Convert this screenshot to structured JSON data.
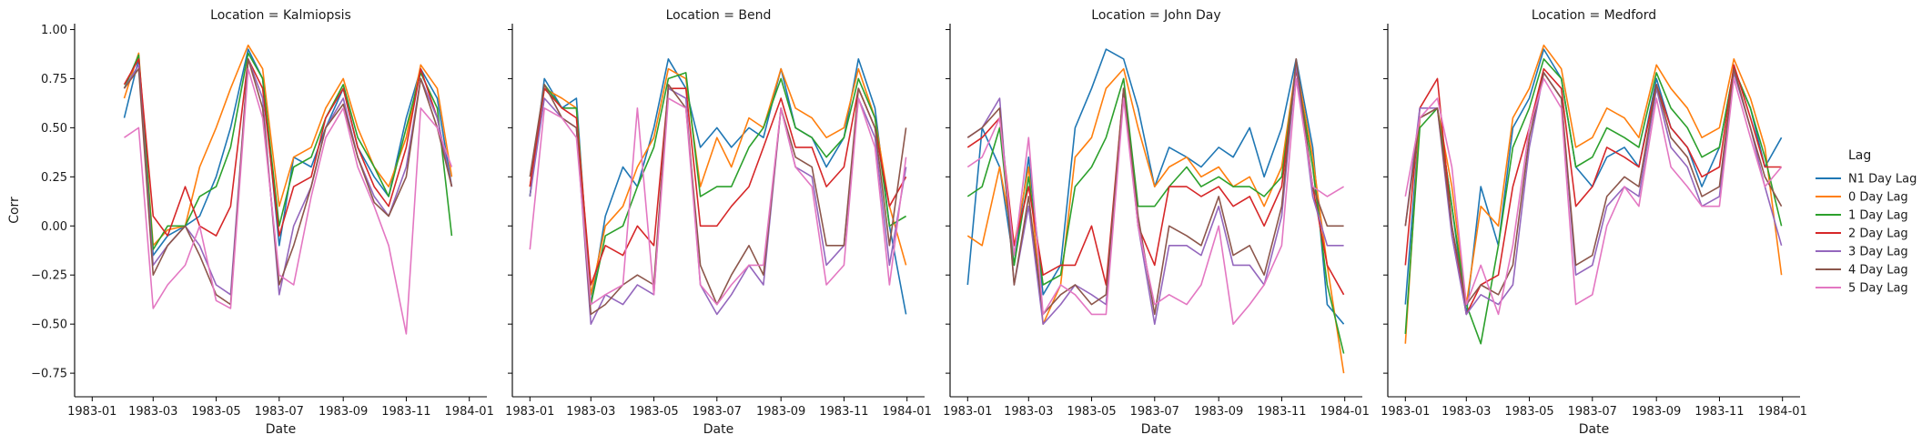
{
  "chart_data": {
    "type": "line",
    "facet_label_prefix": "Location = ",
    "facets": [
      "Kalmiopsis",
      "Bend",
      "John Day",
      "Medford"
    ],
    "xlabel": "Date",
    "ylabel": "Corr",
    "x_tick_labels": [
      "1983-01",
      "1983-03",
      "1983-05",
      "1983-07",
      "1983-09",
      "1983-11",
      "1984-01"
    ],
    "x_tick_dates": [
      "1983-01-01",
      "1983-03-01",
      "1983-05-01",
      "1983-07-01",
      "1983-09-01",
      "1983-11-01",
      "1984-01-01"
    ],
    "x_range": [
      "1982-12-15",
      "1984-01-18"
    ],
    "y_ticks": [
      -0.75,
      -0.5,
      -0.25,
      0.0,
      0.25,
      0.5,
      0.75,
      1.0
    ],
    "y_tick_labels": [
      "−0.75",
      "−0.50",
      "−0.25",
      "0.00",
      "0.25",
      "0.50",
      "0.75",
      "1.00"
    ],
    "ylim": [
      -0.87,
      1.03
    ],
    "grid": false,
    "legend": {
      "title": "Lag",
      "placement": "right",
      "entries": [
        "N1 Day Lag",
        "0 Day Lag",
        "1 Day Lag",
        "2 Day Lag",
        "3 Day Lag",
        "4 Day Lag",
        "5 Day Lag"
      ]
    },
    "colors": [
      "#1f77b4",
      "#ff7f0e",
      "#2ca02c",
      "#d62728",
      "#9467bd",
      "#8c564b",
      "#e377c2"
    ],
    "x_dates": [
      "1983-01-01",
      "1983-01-15",
      "1983-02-01",
      "1983-02-15",
      "1983-03-01",
      "1983-03-15",
      "1983-04-01",
      "1983-04-15",
      "1983-05-01",
      "1983-05-15",
      "1983-06-01",
      "1983-06-15",
      "1983-07-01",
      "1983-07-15",
      "1983-08-01",
      "1983-08-15",
      "1983-09-01",
      "1983-09-15",
      "1983-10-01",
      "1983-10-15",
      "1983-11-01",
      "1983-11-15",
      "1983-12-01",
      "1983-12-15",
      "1983-12-31"
    ],
    "series_by_facet": [
      {
        "facet": "Kalmiopsis",
        "start_index": 2,
        "series": [
          {
            "name": "N1 Day Lag",
            "values": [
              null,
              null,
              0.55,
              0.85,
              -0.15,
              -0.05,
              0.0,
              0.05,
              0.25,
              0.5,
              0.9,
              0.75,
              -0.1,
              0.35,
              0.3,
              0.5,
              0.7,
              0.4,
              0.25,
              0.15,
              0.55,
              0.8,
              0.65,
              0.2,
              null
            ]
          },
          {
            "name": "0 Day Lag",
            "values": [
              null,
              null,
              0.65,
              0.88,
              -0.1,
              -0.02,
              0.0,
              0.3,
              0.5,
              0.7,
              0.92,
              0.8,
              0.1,
              0.35,
              0.4,
              0.6,
              0.75,
              0.5,
              0.3,
              0.2,
              0.45,
              0.82,
              0.7,
              0.25,
              null
            ]
          },
          {
            "name": "1 Day Lag",
            "values": [
              null,
              null,
              0.7,
              0.87,
              -0.12,
              0.0,
              0.0,
              0.15,
              0.2,
              0.4,
              0.88,
              0.75,
              0.0,
              0.3,
              0.35,
              0.55,
              0.72,
              0.45,
              0.3,
              0.15,
              0.5,
              0.78,
              0.6,
              -0.05,
              null
            ]
          },
          {
            "name": "2 Day Lag",
            "values": [
              null,
              null,
              0.72,
              0.85,
              0.05,
              -0.05,
              0.2,
              0.0,
              -0.05,
              0.1,
              0.85,
              0.7,
              -0.05,
              0.2,
              0.25,
              0.55,
              0.7,
              0.4,
              0.2,
              0.1,
              0.4,
              0.8,
              0.55,
              0.2,
              null
            ]
          },
          {
            "name": "3 Day Lag",
            "values": [
              null,
              null,
              0.7,
              0.82,
              -0.2,
              -0.1,
              0.0,
              -0.1,
              -0.3,
              -0.35,
              0.85,
              0.65,
              -0.35,
              0.0,
              0.2,
              0.5,
              0.65,
              0.35,
              0.15,
              0.05,
              0.3,
              0.75,
              0.55,
              0.2,
              null
            ]
          },
          {
            "name": "4 Day Lag",
            "values": [
              null,
              null,
              0.7,
              0.8,
              -0.25,
              -0.1,
              0.0,
              -0.15,
              -0.35,
              -0.4,
              0.85,
              0.6,
              -0.3,
              -0.1,
              0.2,
              0.5,
              0.62,
              0.35,
              0.12,
              0.05,
              0.25,
              0.75,
              0.5,
              0.2,
              null
            ]
          },
          {
            "name": "5 Day Lag",
            "values": [
              null,
              null,
              0.45,
              0.5,
              -0.42,
              -0.3,
              -0.2,
              0.0,
              -0.38,
              -0.42,
              0.8,
              0.55,
              -0.25,
              -0.3,
              0.15,
              0.45,
              0.6,
              0.3,
              0.1,
              -0.1,
              -0.55,
              0.6,
              0.5,
              0.3,
              null
            ]
          }
        ]
      },
      {
        "facet": "Bend",
        "start_index": 0,
        "series": [
          {
            "name": "N1 Day Lag",
            "values": [
              0.15,
              0.75,
              0.6,
              0.65,
              -0.4,
              0.05,
              0.3,
              0.2,
              0.5,
              0.85,
              0.7,
              0.4,
              0.5,
              0.4,
              0.5,
              0.45,
              0.8,
              0.5,
              0.45,
              0.3,
              0.45,
              0.85,
              0.6,
              0.0,
              -0.45
            ]
          },
          {
            "name": "0 Day Lag",
            "values": [
              0.2,
              0.7,
              0.65,
              0.6,
              -0.35,
              0.0,
              0.1,
              0.3,
              0.45,
              0.8,
              0.75,
              0.2,
              0.45,
              0.3,
              0.55,
              0.5,
              0.8,
              0.6,
              0.55,
              0.45,
              0.5,
              0.8,
              0.55,
              0.1,
              -0.2
            ]
          },
          {
            "name": "1 Day Lag",
            "values": [
              0.15,
              0.72,
              0.6,
              0.6,
              -0.4,
              -0.05,
              0.0,
              0.2,
              0.4,
              0.75,
              0.78,
              0.15,
              0.2,
              0.2,
              0.4,
              0.5,
              0.75,
              0.5,
              0.45,
              0.35,
              0.45,
              0.75,
              0.55,
              0.0,
              0.05
            ]
          },
          {
            "name": "2 Day Lag",
            "values": [
              0.2,
              0.7,
              0.6,
              0.55,
              -0.3,
              -0.1,
              -0.15,
              0.0,
              -0.1,
              0.7,
              0.7,
              0.0,
              0.0,
              0.1,
              0.2,
              0.4,
              0.65,
              0.4,
              0.4,
              0.2,
              0.3,
              0.7,
              0.5,
              0.1,
              0.25
            ]
          },
          {
            "name": "3 Day Lag",
            "values": [
              0.15,
              0.65,
              0.55,
              0.5,
              -0.5,
              -0.35,
              -0.4,
              -0.3,
              -0.35,
              0.7,
              0.65,
              -0.3,
              -0.45,
              -0.35,
              -0.2,
              -0.3,
              0.6,
              0.3,
              0.25,
              -0.2,
              -0.1,
              0.65,
              0.45,
              -0.2,
              0.3
            ]
          },
          {
            "name": "4 Day Lag",
            "values": [
              0.25,
              0.72,
              0.55,
              0.5,
              -0.45,
              -0.4,
              -0.3,
              -0.25,
              -0.3,
              0.72,
              0.6,
              -0.2,
              -0.4,
              -0.25,
              -0.1,
              -0.25,
              0.6,
              0.35,
              0.3,
              -0.1,
              -0.1,
              0.7,
              0.5,
              -0.1,
              0.5
            ]
          },
          {
            "name": "5 Day Lag",
            "values": [
              -0.12,
              0.6,
              0.55,
              0.45,
              -0.4,
              -0.35,
              -0.3,
              0.6,
              -0.35,
              0.65,
              0.6,
              -0.3,
              -0.4,
              -0.3,
              -0.2,
              -0.2,
              0.6,
              0.3,
              0.2,
              -0.3,
              -0.2,
              0.65,
              0.4,
              -0.3,
              0.35
            ]
          }
        ]
      },
      {
        "facet": "John Day",
        "start_index": 0,
        "series": [
          {
            "name": "N1 Day Lag",
            "values": [
              -0.3,
              0.5,
              0.3,
              -0.2,
              0.35,
              -0.35,
              -0.2,
              0.5,
              0.7,
              0.9,
              0.85,
              0.6,
              0.2,
              0.4,
              0.35,
              0.3,
              0.4,
              0.35,
              0.5,
              0.25,
              0.5,
              0.85,
              0.4,
              -0.4,
              -0.5
            ]
          },
          {
            "name": "0 Day Lag",
            "values": [
              -0.05,
              -0.1,
              0.3,
              -0.1,
              0.3,
              -0.5,
              -0.3,
              0.35,
              0.45,
              0.7,
              0.8,
              0.5,
              0.2,
              0.3,
              0.35,
              0.25,
              0.3,
              0.2,
              0.25,
              0.1,
              0.3,
              0.82,
              0.35,
              -0.2,
              -0.75
            ]
          },
          {
            "name": "1 Day Lag",
            "values": [
              0.15,
              0.2,
              0.5,
              -0.2,
              0.25,
              -0.3,
              -0.25,
              0.2,
              0.3,
              0.45,
              0.75,
              0.1,
              0.1,
              0.2,
              0.3,
              0.2,
              0.25,
              0.2,
              0.2,
              0.15,
              0.25,
              0.8,
              0.3,
              -0.3,
              -0.65
            ]
          },
          {
            "name": "2 Day Lag",
            "values": [
              0.4,
              0.45,
              0.55,
              -0.1,
              0.2,
              -0.25,
              -0.2,
              -0.2,
              0.0,
              -0.3,
              0.7,
              0.0,
              -0.2,
              0.2,
              0.2,
              0.15,
              0.2,
              0.1,
              0.15,
              0.0,
              0.2,
              0.8,
              0.2,
              -0.2,
              -0.35
            ]
          },
          {
            "name": "3 Day Lag",
            "values": [
              0.45,
              0.5,
              0.65,
              -0.3,
              0.1,
              -0.5,
              -0.4,
              -0.3,
              -0.35,
              -0.4,
              0.7,
              0.0,
              -0.5,
              -0.1,
              -0.1,
              -0.15,
              0.1,
              -0.2,
              -0.2,
              -0.3,
              0.05,
              0.82,
              0.15,
              -0.1,
              -0.1
            ]
          },
          {
            "name": "4 Day Lag",
            "values": [
              0.45,
              0.5,
              0.6,
              -0.3,
              0.15,
              -0.45,
              -0.35,
              -0.3,
              -0.4,
              -0.35,
              0.7,
              0.05,
              -0.45,
              0.0,
              -0.05,
              -0.1,
              0.15,
              -0.15,
              -0.1,
              -0.25,
              0.1,
              0.85,
              0.2,
              0.0,
              0.0
            ]
          },
          {
            "name": "5 Day Lag",
            "values": [
              0.3,
              0.35,
              0.55,
              -0.15,
              0.45,
              -0.45,
              -0.3,
              -0.35,
              -0.45,
              -0.45,
              0.65,
              0.0,
              -0.4,
              -0.35,
              -0.4,
              -0.3,
              0.0,
              -0.5,
              -0.4,
              -0.3,
              -0.1,
              0.75,
              0.2,
              0.15,
              0.2
            ]
          }
        ]
      },
      {
        "facet": "Medford",
        "start_index": 0,
        "series": [
          {
            "name": "N1 Day Lag",
            "values": [
              -0.4,
              0.55,
              0.6,
              0.1,
              -0.45,
              0.2,
              -0.1,
              0.5,
              0.65,
              0.9,
              0.75,
              0.3,
              0.2,
              0.35,
              0.4,
              0.3,
              0.75,
              0.5,
              0.4,
              0.2,
              0.4,
              0.8,
              0.6,
              0.3,
              0.45
            ]
          },
          {
            "name": "0 Day Lag",
            "values": [
              -0.6,
              0.55,
              0.6,
              0.2,
              -0.4,
              0.1,
              0.0,
              0.55,
              0.7,
              0.92,
              0.8,
              0.4,
              0.45,
              0.6,
              0.55,
              0.45,
              0.82,
              0.7,
              0.6,
              0.45,
              0.5,
              0.85,
              0.65,
              0.4,
              -0.25
            ]
          },
          {
            "name": "1 Day Lag",
            "values": [
              -0.55,
              0.5,
              0.6,
              0.1,
              -0.4,
              -0.6,
              -0.1,
              0.4,
              0.6,
              0.85,
              0.75,
              0.3,
              0.35,
              0.5,
              0.45,
              0.4,
              0.78,
              0.6,
              0.5,
              0.35,
              0.4,
              0.8,
              0.6,
              0.35,
              0.0
            ]
          },
          {
            "name": "2 Day Lag",
            "values": [
              -0.2,
              0.6,
              0.75,
              0.0,
              -0.45,
              -0.3,
              -0.25,
              0.2,
              0.5,
              0.8,
              0.7,
              0.1,
              0.2,
              0.4,
              0.35,
              0.3,
              0.72,
              0.5,
              0.4,
              0.25,
              0.3,
              0.82,
              0.55,
              0.3,
              0.3
            ]
          },
          {
            "name": "3 Day Lag",
            "values": [
              0.0,
              0.6,
              0.6,
              -0.05,
              -0.45,
              -0.35,
              -0.4,
              -0.3,
              0.4,
              0.78,
              0.65,
              -0.25,
              -0.2,
              0.1,
              0.2,
              0.15,
              0.7,
              0.4,
              0.3,
              0.1,
              0.15,
              0.78,
              0.5,
              0.2,
              -0.1
            ]
          },
          {
            "name": "4 Day Lag",
            "values": [
              0.0,
              0.55,
              0.6,
              0.0,
              -0.4,
              -0.3,
              -0.35,
              -0.2,
              0.45,
              0.78,
              0.65,
              -0.2,
              -0.15,
              0.15,
              0.25,
              0.2,
              0.72,
              0.45,
              0.35,
              0.15,
              0.2,
              0.8,
              0.5,
              0.25,
              0.1
            ]
          },
          {
            "name": "5 Day Lag",
            "values": [
              0.15,
              0.55,
              0.65,
              0.3,
              -0.4,
              -0.2,
              -0.45,
              -0.1,
              0.5,
              0.75,
              0.6,
              -0.4,
              -0.35,
              0.0,
              0.2,
              0.1,
              0.65,
              0.3,
              0.2,
              0.1,
              0.1,
              0.75,
              0.45,
              0.2,
              0.3
            ]
          }
        ]
      }
    ]
  }
}
